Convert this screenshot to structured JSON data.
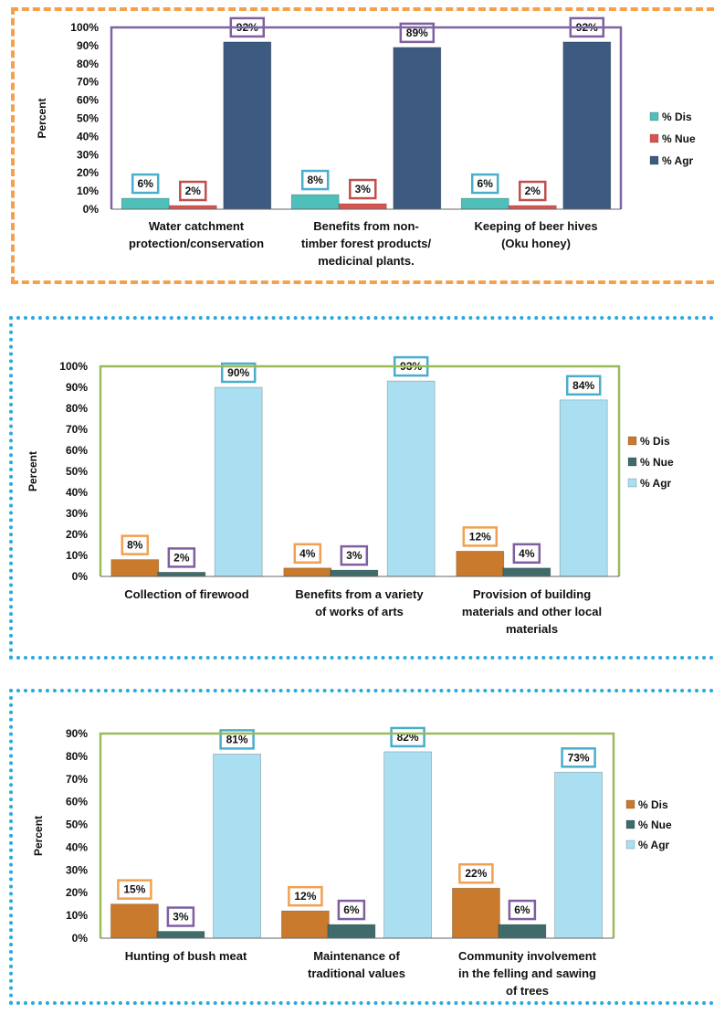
{
  "chart_data": [
    {
      "type": "bar",
      "ylabel": "Percent",
      "ylim": [
        0,
        100
      ],
      "yticks": [
        "0%",
        "10%",
        "20%",
        "30%",
        "40%",
        "50%",
        "60%",
        "70%",
        "80%",
        "90%",
        "100%"
      ],
      "categories": [
        [
          "Water catchment",
          "protection/conservation"
        ],
        [
          "Benefits from non-",
          "timber forest products/",
          "medicinal plants."
        ],
        [
          "Keeping of beer hives",
          "(Oku honey)"
        ]
      ],
      "series": [
        {
          "name": "% Dis",
          "values": [
            6,
            8,
            6
          ],
          "color": "#4fbfb9"
        },
        {
          "name": "% Nue",
          "values": [
            2,
            3,
            2
          ],
          "color": "#d9534f"
        },
        {
          "name": "% Agr",
          "values": [
            92,
            89,
            92
          ],
          "color": "#3d5a80"
        }
      ],
      "data_labels": [
        [
          "6%",
          "8%",
          "6%"
        ],
        [
          "2%",
          "3%",
          "2%"
        ],
        [
          "92%",
          "89%",
          "92%"
        ]
      ],
      "label_colors": [
        "#4aaecb",
        "#c0504d",
        "#7f5f9f"
      ],
      "plot_border": "#8064a2",
      "legend": "right"
    },
    {
      "type": "bar",
      "ylabel": "Percent",
      "ylim": [
        0,
        100
      ],
      "yticks": [
        "0%",
        "10%",
        "20%",
        "30%",
        "40%",
        "50%",
        "60%",
        "70%",
        "80%",
        "90%",
        "100%"
      ],
      "categories": [
        [
          "Collection of firewood"
        ],
        [
          "Benefits from a variety",
          "of works of arts"
        ],
        [
          "Provision of building",
          "materials and other local",
          "materials"
        ]
      ],
      "series": [
        {
          "name": "% Dis",
          "values": [
            8,
            4,
            12
          ],
          "color": "#c97a2c"
        },
        {
          "name": "% Nue",
          "values": [
            2,
            3,
            4
          ],
          "color": "#3f6b6b"
        },
        {
          "name": "% Agr",
          "values": [
            90,
            93,
            84
          ],
          "color": "#a9dff0"
        }
      ],
      "data_labels": [
        [
          "8%",
          "4%",
          "12%"
        ],
        [
          "2%",
          "3%",
          "4%"
        ],
        [
          "90%",
          "93%",
          "84%"
        ]
      ],
      "label_colors": [
        "#f0a050",
        "#7f5f9f",
        "#4aaecb"
      ],
      "plot_border": "#9bbb59",
      "legend": "right"
    },
    {
      "type": "bar",
      "ylabel": "Percent",
      "ylim": [
        0,
        90
      ],
      "yticks": [
        "0%",
        "10%",
        "20%",
        "30%",
        "40%",
        "50%",
        "60%",
        "70%",
        "80%",
        "90%"
      ],
      "categories": [
        [
          "Hunting of bush meat"
        ],
        [
          "Maintenance of",
          "traditional values"
        ],
        [
          "Community involvement",
          "in the felling and sawing",
          "of trees"
        ]
      ],
      "series": [
        {
          "name": "% Dis",
          "values": [
            15,
            12,
            22
          ],
          "color": "#c97a2c"
        },
        {
          "name": "% Nue",
          "values": [
            3,
            6,
            6
          ],
          "color": "#3f6b6b"
        },
        {
          "name": "% Agr",
          "values": [
            81,
            82,
            73
          ],
          "color": "#a9dff0"
        }
      ],
      "data_labels": [
        [
          "15%",
          "12%",
          "22%"
        ],
        [
          "3%",
          "6%",
          "6%"
        ],
        [
          "81%",
          "82%",
          "73%"
        ]
      ],
      "label_colors": [
        "#f0a050",
        "#7f5f9f",
        "#4aaecb"
      ],
      "plot_border": "#9bbb59",
      "legend": "right"
    }
  ]
}
